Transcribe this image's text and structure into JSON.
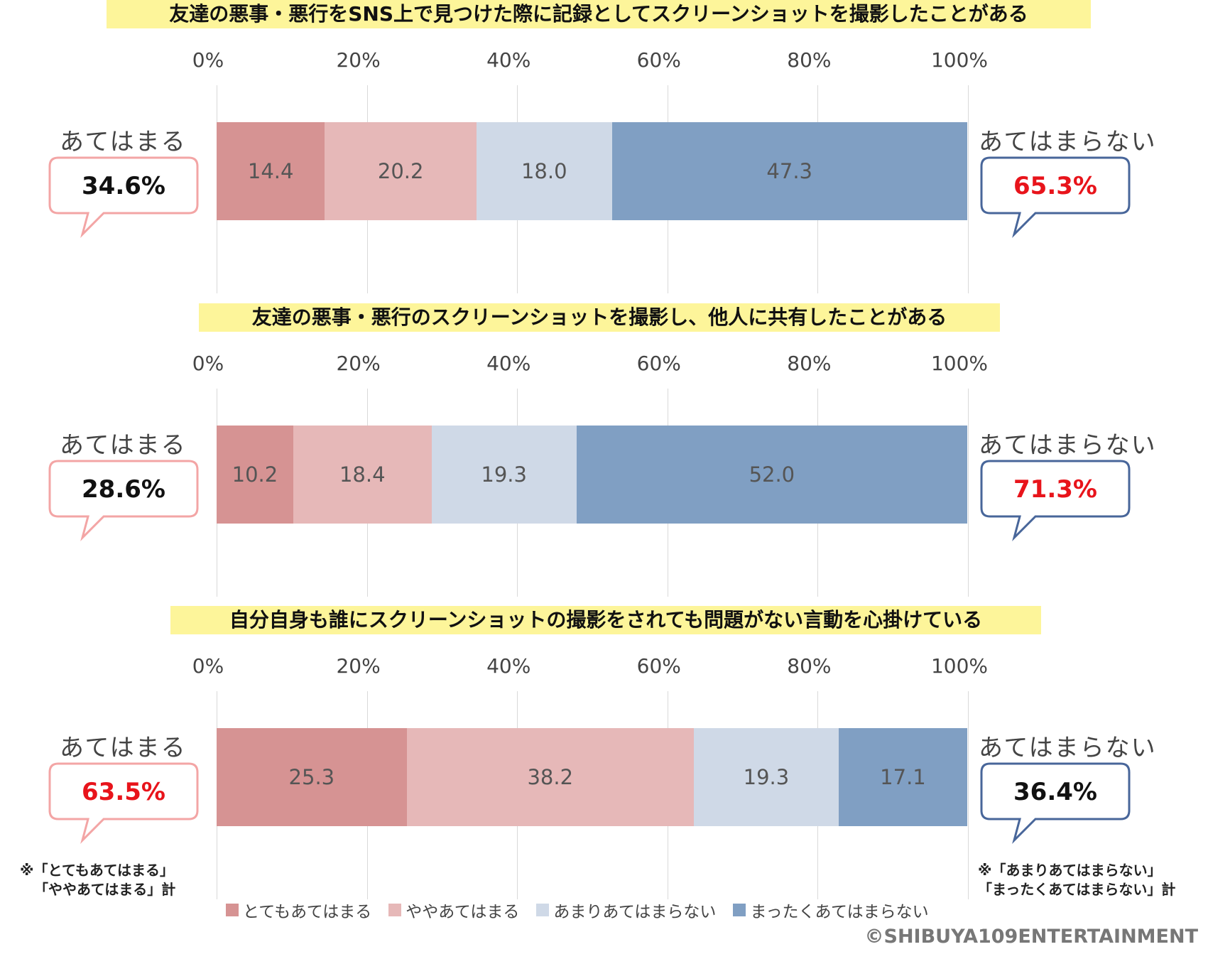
{
  "colors": {
    "seg": [
      "#d69393",
      "#e6b8b8",
      "#cfd9e7",
      "#809fc3"
    ],
    "positive_bubble": "#f3a5a5",
    "negative_bubble": "#48669a",
    "highlight_text": "#e8141b",
    "normal_text": "#111111"
  },
  "chart_data": [
    {
      "type": "bar",
      "stacked": true,
      "orientation": "horizontal",
      "title": "友達の悪事・悪行をSNS上で見つけた際に記録としてスクリーンショットを撮影したことがある",
      "x_ticks": [
        "0%",
        "20%",
        "40%",
        "60%",
        "80%",
        "100%"
      ],
      "xlim": [
        0,
        100
      ],
      "categories": [
        "とてもあてはまる",
        "ややあてはまる",
        "あまりあてはまらない",
        "まったくあてはまらない"
      ],
      "values": [
        14.4,
        20.2,
        18.0,
        47.3
      ],
      "value_labels": [
        "14.4",
        "20.2",
        "18.0",
        "47.3"
      ],
      "left_label": "あてはまる",
      "left_total": "34.6%",
      "right_label": "あてはまらない",
      "right_total": "65.3%",
      "highlight": "right"
    },
    {
      "type": "bar",
      "stacked": true,
      "orientation": "horizontal",
      "title": "友達の悪事・悪行のスクリーンショットを撮影し、他人に共有したことがある",
      "x_ticks": [
        "0%",
        "20%",
        "40%",
        "60%",
        "80%",
        "100%"
      ],
      "xlim": [
        0,
        100
      ],
      "categories": [
        "とてもあてはまる",
        "ややあてはまる",
        "あまりあてはまらない",
        "まったくあてはまらない"
      ],
      "values": [
        10.2,
        18.4,
        19.3,
        52.0
      ],
      "value_labels": [
        "10.2",
        "18.4",
        "19.3",
        "52.0"
      ],
      "left_label": "あてはまる",
      "left_total": "28.6%",
      "right_label": "あてはまらない",
      "right_total": "71.3%",
      "highlight": "right"
    },
    {
      "type": "bar",
      "stacked": true,
      "orientation": "horizontal",
      "title": "自分自身も誰にスクリーンショットの撮影をされても問題がない言動を心掛けている",
      "x_ticks": [
        "0%",
        "20%",
        "40%",
        "60%",
        "80%",
        "100%"
      ],
      "xlim": [
        0,
        100
      ],
      "categories": [
        "とてもあてはまる",
        "ややあてはまる",
        "あまりあてはまらない",
        "まったくあてはまらない"
      ],
      "values": [
        25.3,
        38.2,
        19.3,
        17.1
      ],
      "value_labels": [
        "25.3",
        "38.2",
        "19.3",
        "17.1"
      ],
      "left_label": "あてはまる",
      "left_total": "63.5%",
      "right_label": "あてはまらない",
      "right_total": "36.4%",
      "highlight": "left"
    }
  ],
  "legend": [
    "とてもあてはまる",
    "ややあてはまる",
    "あまりあてはまらない",
    "まったくあてはまらない"
  ],
  "notes": {
    "left": [
      "※「とてもあてはまる」",
      "「ややあてはまる」計"
    ],
    "right": [
      "※「あまりあてはまらない」",
      "「まったくあてはまらない」計"
    ]
  },
  "copyright": "©SHIBUYA109ENTERTAINMENT"
}
